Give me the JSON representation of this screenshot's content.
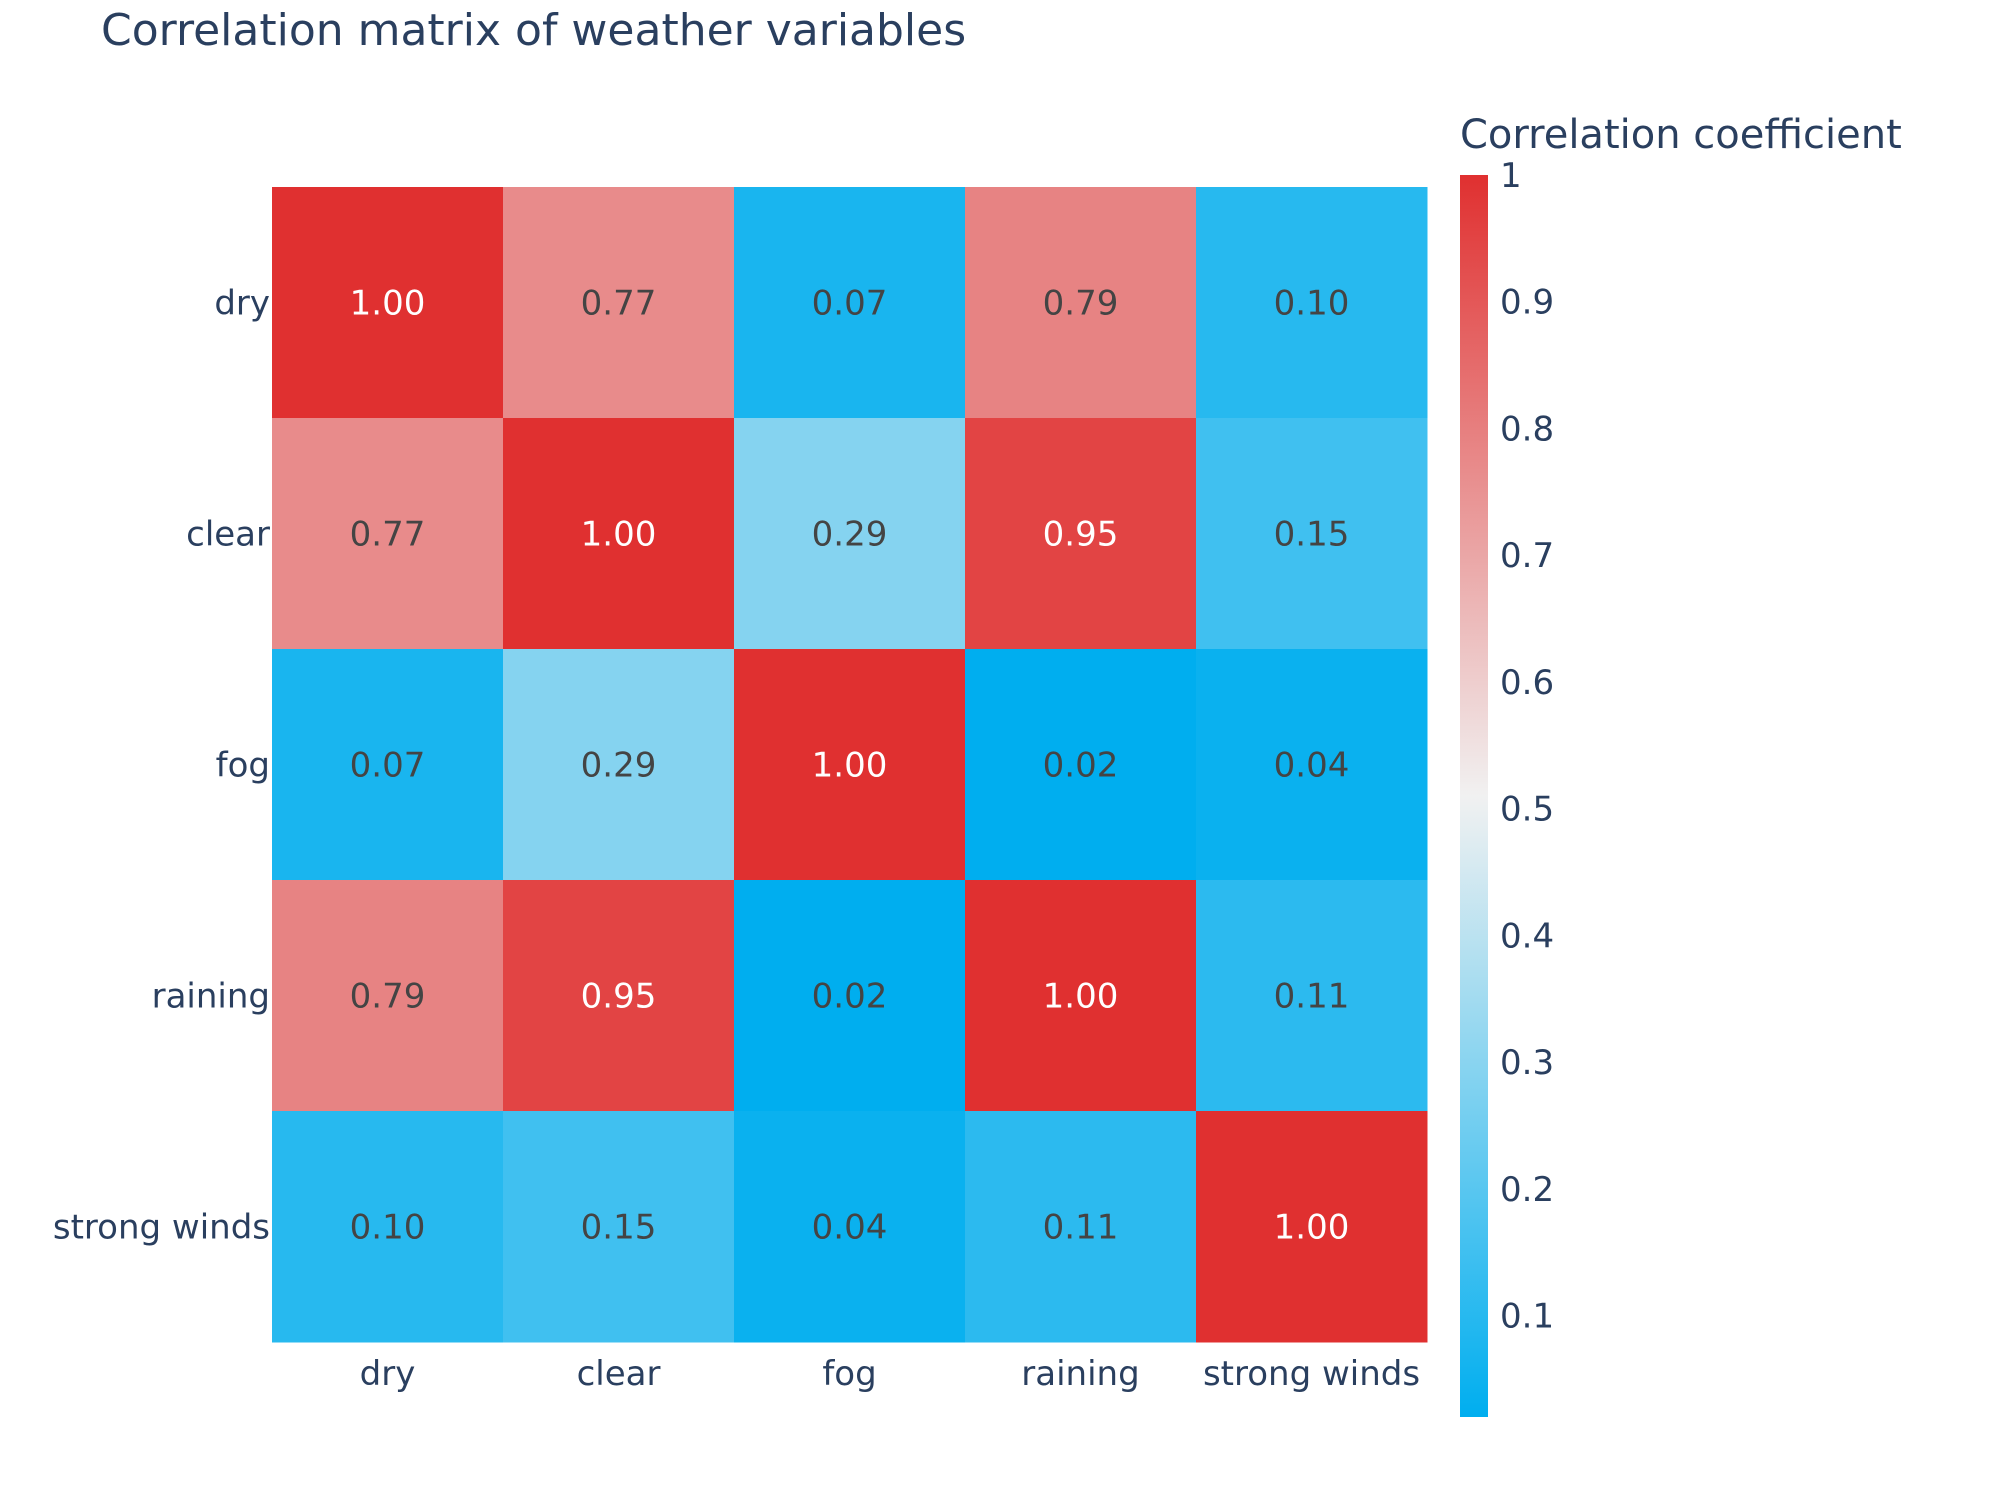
{
  "chart_data": {
    "type": "heatmap",
    "title": "Correlation matrix of weather variables",
    "x_categories": [
      "dry",
      "clear",
      "fog",
      "raining",
      "strong winds"
    ],
    "y_categories": [
      "dry",
      "clear",
      "fog",
      "raining",
      "strong winds"
    ],
    "values": [
      [
        1.0,
        0.77,
        0.07,
        0.79,
        0.1
      ],
      [
        0.77,
        1.0,
        0.29,
        0.95,
        0.15
      ],
      [
        0.07,
        0.29,
        1.0,
        0.02,
        0.04
      ],
      [
        0.79,
        0.95,
        0.02,
        1.0,
        0.11
      ],
      [
        0.1,
        0.15,
        0.04,
        0.11,
        1.0
      ]
    ],
    "cell_labels": [
      [
        "1.00",
        "0.77",
        "0.07",
        "0.79",
        "0.10"
      ],
      [
        "0.77",
        "1.00",
        "0.29",
        "0.95",
        "0.15"
      ],
      [
        "0.07",
        "0.29",
        "1.00",
        "0.02",
        "0.04"
      ],
      [
        "0.79",
        "0.95",
        "0.02",
        "1.00",
        "0.11"
      ],
      [
        "0.10",
        "0.15",
        "0.04",
        "0.11",
        "1.00"
      ]
    ],
    "colorbar": {
      "title": "Correlation coefficient",
      "range": [
        0.02,
        1.0
      ],
      "ticks": [
        0.1,
        0.2,
        0.3,
        0.4,
        0.5,
        0.6,
        0.7,
        0.8,
        0.9,
        1
      ],
      "tick_labels": [
        "0.1",
        "0.2",
        "0.3",
        "0.4",
        "0.5",
        "0.6",
        "0.7",
        "0.8",
        "0.9",
        "1"
      ],
      "colorscale": [
        [
          0.0,
          "#00aeef"
        ],
        [
          0.5,
          "#f1f1f1"
        ],
        [
          1.0,
          "#e03030"
        ]
      ],
      "position": "right"
    },
    "text_colors": {
      "light_cell": "#444444",
      "dark_cell": "#ffffff"
    },
    "grid": false
  }
}
